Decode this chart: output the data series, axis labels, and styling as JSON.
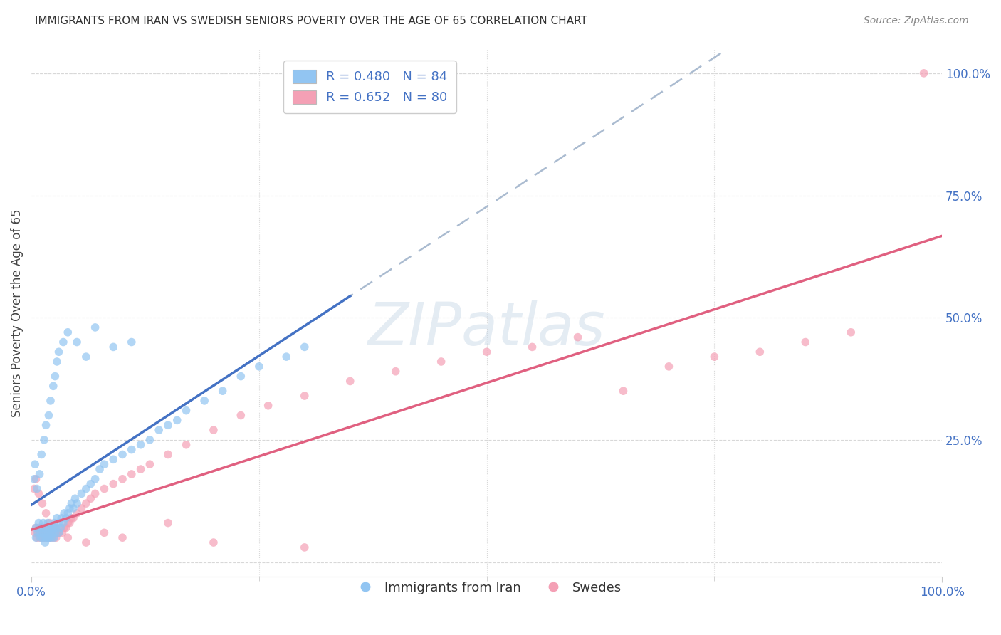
{
  "title": "IMMIGRANTS FROM IRAN VS SWEDISH SENIORS POVERTY OVER THE AGE OF 65 CORRELATION CHART",
  "source": "Source: ZipAtlas.com",
  "ylabel_label": "Seniors Poverty Over the Age of 65",
  "right_ytick_labels": [
    "100.0%",
    "75.0%",
    "50.0%",
    "25.0%"
  ],
  "right_ytick_values": [
    1.0,
    0.75,
    0.5,
    0.25
  ],
  "color_blue": "#92C5F2",
  "color_pink": "#F4A0B5",
  "color_blue_line": "#4472C4",
  "color_pink_line": "#E06080",
  "color_dashed": "#AABBD0",
  "background_color": "#FFFFFF",
  "grid_color": "#D8D8D8",
  "blue_x": [
    0.005,
    0.005,
    0.007,
    0.008,
    0.01,
    0.01,
    0.011,
    0.012,
    0.013,
    0.013,
    0.015,
    0.015,
    0.015,
    0.016,
    0.017,
    0.018,
    0.018,
    0.019,
    0.02,
    0.02,
    0.021,
    0.022,
    0.022,
    0.023,
    0.024,
    0.025,
    0.025,
    0.026,
    0.027,
    0.028,
    0.03,
    0.03,
    0.032,
    0.033,
    0.035,
    0.036,
    0.038,
    0.04,
    0.042,
    0.044,
    0.046,
    0.048,
    0.05,
    0.055,
    0.06,
    0.065,
    0.07,
    0.075,
    0.08,
    0.09,
    0.1,
    0.11,
    0.12,
    0.13,
    0.14,
    0.15,
    0.16,
    0.17,
    0.19,
    0.21,
    0.23,
    0.25,
    0.28,
    0.3,
    0.003,
    0.004,
    0.006,
    0.009,
    0.011,
    0.014,
    0.016,
    0.019,
    0.021,
    0.024,
    0.026,
    0.028,
    0.03,
    0.035,
    0.04,
    0.05,
    0.06,
    0.07,
    0.09,
    0.11
  ],
  "blue_y": [
    0.05,
    0.07,
    0.06,
    0.08,
    0.05,
    0.06,
    0.07,
    0.05,
    0.06,
    0.08,
    0.04,
    0.05,
    0.07,
    0.06,
    0.05,
    0.06,
    0.08,
    0.05,
    0.05,
    0.07,
    0.06,
    0.05,
    0.07,
    0.06,
    0.07,
    0.05,
    0.08,
    0.06,
    0.07,
    0.09,
    0.06,
    0.08,
    0.07,
    0.09,
    0.08,
    0.1,
    0.09,
    0.1,
    0.11,
    0.12,
    0.11,
    0.13,
    0.12,
    0.14,
    0.15,
    0.16,
    0.17,
    0.19,
    0.2,
    0.21,
    0.22,
    0.23,
    0.24,
    0.25,
    0.27,
    0.28,
    0.29,
    0.31,
    0.33,
    0.35,
    0.38,
    0.4,
    0.42,
    0.44,
    0.17,
    0.2,
    0.15,
    0.18,
    0.22,
    0.25,
    0.28,
    0.3,
    0.33,
    0.36,
    0.38,
    0.41,
    0.43,
    0.45,
    0.47,
    0.45,
    0.42,
    0.48,
    0.44,
    0.45
  ],
  "pink_x": [
    0.003,
    0.004,
    0.005,
    0.006,
    0.007,
    0.008,
    0.009,
    0.01,
    0.011,
    0.012,
    0.013,
    0.014,
    0.015,
    0.016,
    0.017,
    0.018,
    0.019,
    0.02,
    0.021,
    0.022,
    0.023,
    0.024,
    0.025,
    0.026,
    0.027,
    0.028,
    0.03,
    0.032,
    0.034,
    0.036,
    0.038,
    0.04,
    0.042,
    0.044,
    0.046,
    0.05,
    0.055,
    0.06,
    0.065,
    0.07,
    0.08,
    0.09,
    0.1,
    0.11,
    0.12,
    0.13,
    0.15,
    0.17,
    0.2,
    0.23,
    0.26,
    0.3,
    0.35,
    0.4,
    0.45,
    0.5,
    0.55,
    0.6,
    0.65,
    0.7,
    0.75,
    0.8,
    0.85,
    0.9,
    0.005,
    0.008,
    0.012,
    0.016,
    0.02,
    0.025,
    0.03,
    0.04,
    0.06,
    0.08,
    0.1,
    0.15,
    0.2,
    0.3,
    0.98
  ],
  "pink_y": [
    0.15,
    0.06,
    0.07,
    0.05,
    0.06,
    0.07,
    0.05,
    0.06,
    0.07,
    0.05,
    0.06,
    0.05,
    0.06,
    0.07,
    0.05,
    0.06,
    0.05,
    0.06,
    0.05,
    0.06,
    0.07,
    0.05,
    0.06,
    0.07,
    0.05,
    0.06,
    0.06,
    0.07,
    0.06,
    0.07,
    0.07,
    0.08,
    0.08,
    0.09,
    0.09,
    0.1,
    0.11,
    0.12,
    0.13,
    0.14,
    0.15,
    0.16,
    0.17,
    0.18,
    0.19,
    0.2,
    0.22,
    0.24,
    0.27,
    0.3,
    0.32,
    0.34,
    0.37,
    0.39,
    0.41,
    0.43,
    0.44,
    0.46,
    0.35,
    0.4,
    0.42,
    0.43,
    0.45,
    0.47,
    0.17,
    0.14,
    0.12,
    0.1,
    0.08,
    0.07,
    0.06,
    0.05,
    0.04,
    0.06,
    0.05,
    0.08,
    0.04,
    0.03,
    1.0
  ]
}
